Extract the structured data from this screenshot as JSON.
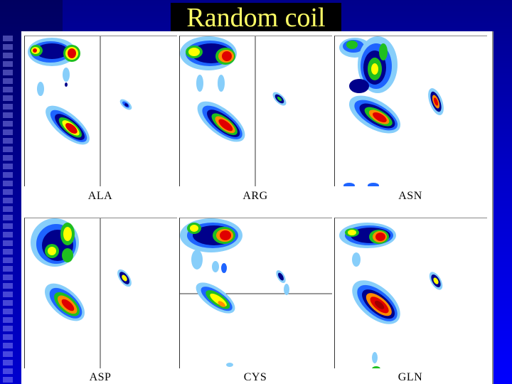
{
  "slide": {
    "title": "Random coil"
  },
  "panels": [
    {
      "label": "ALA"
    },
    {
      "label": "ARG"
    },
    {
      "label": "ASN"
    },
    {
      "label": "ASP"
    },
    {
      "label": "CYS"
    },
    {
      "label": "GLN"
    }
  ],
  "colors": {
    "background": "#0000ff",
    "title_text": "#ffff66",
    "contour_levels": [
      "#87cefa",
      "#1e64ff",
      "#00008b",
      "#1fbf1f",
      "#ffff00",
      "#ff8c00",
      "#e00000",
      "#a00000"
    ]
  }
}
